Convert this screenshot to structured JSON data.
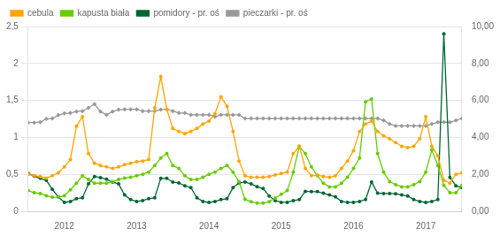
{
  "chart_data": {
    "type": "line",
    "categories": [
      null,
      null,
      null,
      null,
      null,
      null,
      "2012",
      null,
      null,
      null,
      null,
      null,
      null,
      null,
      null,
      null,
      null,
      null,
      "2013",
      null,
      null,
      null,
      null,
      null,
      null,
      null,
      null,
      null,
      null,
      null,
      "2014",
      null,
      null,
      null,
      null,
      null,
      null,
      null,
      null,
      null,
      null,
      null,
      "2015",
      null,
      null,
      null,
      null,
      null,
      null,
      null,
      null,
      null,
      null,
      null,
      "2016",
      null,
      null,
      null,
      null,
      null,
      null,
      null,
      null,
      null,
      null,
      null,
      "2017",
      null,
      null,
      null,
      null,
      null,
      null
    ],
    "series": [
      {
        "name": "cebula",
        "color": "#FFA500",
        "marker": "circle",
        "axis": "y",
        "values": [
          0.5,
          0.48,
          0.47,
          0.45,
          0.48,
          0.52,
          0.6,
          0.7,
          1.15,
          1.28,
          0.78,
          0.65,
          0.62,
          0.6,
          0.58,
          0.6,
          0.63,
          0.65,
          0.67,
          0.68,
          0.7,
          1.4,
          1.82,
          1.38,
          1.12,
          1.08,
          1.05,
          1.08,
          1.12,
          1.18,
          1.22,
          1.32,
          1.55,
          1.42,
          1.08,
          0.68,
          0.48,
          0.46,
          0.46,
          0.46,
          0.47,
          0.49,
          0.51,
          0.53,
          0.78,
          0.88,
          0.58,
          0.48,
          0.49,
          0.47,
          0.46,
          0.48,
          0.58,
          0.68,
          0.82,
          1.08,
          1.18,
          1.22,
          1.08,
          1.02,
          0.98,
          0.93,
          0.88,
          0.86,
          0.88,
          0.98,
          1.28,
          0.88,
          0.75,
          0.42,
          0.38,
          0.5,
          0.52
        ]
      },
      {
        "name": "kapusta biała",
        "color": "#66CC00",
        "marker": "circle",
        "axis": "y",
        "values": [
          0.28,
          0.25,
          0.24,
          0.21,
          0.19,
          0.19,
          0.21,
          0.29,
          0.38,
          0.48,
          0.43,
          0.38,
          0.38,
          0.38,
          0.4,
          0.43,
          0.45,
          0.46,
          0.48,
          0.5,
          0.53,
          0.62,
          0.72,
          0.78,
          0.62,
          0.58,
          0.48,
          0.43,
          0.43,
          0.46,
          0.5,
          0.53,
          0.58,
          0.62,
          0.53,
          0.4,
          0.16,
          0.13,
          0.11,
          0.11,
          0.13,
          0.18,
          0.23,
          0.28,
          0.53,
          0.88,
          0.78,
          0.6,
          0.48,
          0.38,
          0.33,
          0.33,
          0.38,
          0.46,
          0.58,
          0.72,
          1.48,
          1.52,
          0.78,
          0.53,
          0.4,
          0.36,
          0.33,
          0.33,
          0.36,
          0.4,
          0.53,
          0.83,
          0.62,
          0.35,
          0.25,
          0.25,
          0.35
        ]
      },
      {
        "name": "pomidory - pr. oś",
        "color": "#006633",
        "marker": "circle",
        "axis": "y2",
        "values": [
          2.05,
          1.9,
          1.78,
          1.68,
          1.18,
          0.78,
          0.48,
          0.53,
          0.68,
          0.73,
          1.48,
          1.88,
          1.82,
          1.73,
          1.58,
          1.48,
          0.88,
          0.63,
          0.53,
          0.58,
          0.68,
          0.73,
          1.78,
          1.78,
          1.58,
          1.53,
          1.38,
          1.28,
          0.73,
          0.53,
          0.48,
          0.53,
          0.63,
          0.68,
          1.28,
          1.53,
          1.58,
          1.48,
          1.33,
          1.23,
          0.83,
          0.58,
          0.48,
          0.48,
          0.58,
          0.63,
          1.08,
          1.06,
          1.06,
          0.98,
          0.88,
          0.78,
          0.53,
          0.48,
          0.48,
          0.53,
          0.63,
          1.58,
          0.98,
          0.96,
          0.96,
          0.95,
          0.88,
          0.83,
          0.63,
          0.53,
          0.48,
          0.53,
          0.63,
          9.6,
          1.83,
          1.38,
          1.28
        ]
      },
      {
        "name": "pieczarki - pr. oś",
        "color": "#999999",
        "marker": "diamond",
        "axis": "y2",
        "values": [
          4.8,
          4.8,
          4.82,
          5.0,
          5.02,
          5.2,
          5.3,
          5.32,
          5.4,
          5.42,
          5.6,
          5.8,
          5.4,
          5.22,
          5.4,
          5.5,
          5.52,
          5.52,
          5.52,
          5.42,
          5.42,
          5.42,
          5.5,
          5.52,
          5.42,
          5.32,
          5.32,
          5.22,
          5.22,
          5.22,
          5.22,
          5.12,
          5.22,
          5.22,
          5.22,
          5.22,
          5.02,
          5.02,
          5.02,
          5.02,
          5.02,
          5.02,
          5.02,
          5.02,
          5.02,
          5.02,
          5.02,
          5.02,
          5.02,
          5.02,
          5.02,
          5.02,
          5.02,
          5.02,
          5.02,
          5.02,
          5.02,
          5.02,
          5.02,
          4.92,
          4.72,
          4.62,
          4.62,
          4.62,
          4.62,
          4.62,
          4.62,
          4.72,
          4.82,
          4.82,
          4.82,
          4.92,
          5.02
        ]
      }
    ],
    "ylim": [
      0,
      2.5
    ],
    "yticks": [
      0,
      {
        "value": 0.5,
        "label": "0,5"
      },
      1,
      {
        "value": 1.5,
        "label": "1,5"
      },
      2,
      {
        "value": 2.5,
        "label": "2,5"
      }
    ],
    "y2lim": [
      0,
      10
    ],
    "y2ticks": [
      {
        "value": 0,
        "label": "0,00"
      },
      {
        "value": 2,
        "label": "2,00"
      },
      {
        "value": 4,
        "label": "4,00"
      },
      {
        "value": 6,
        "label": "6,00"
      },
      {
        "value": 8,
        "label": "8,00"
      },
      {
        "value": 10,
        "label": "10,00"
      }
    ],
    "grid": true,
    "legend": "top"
  }
}
